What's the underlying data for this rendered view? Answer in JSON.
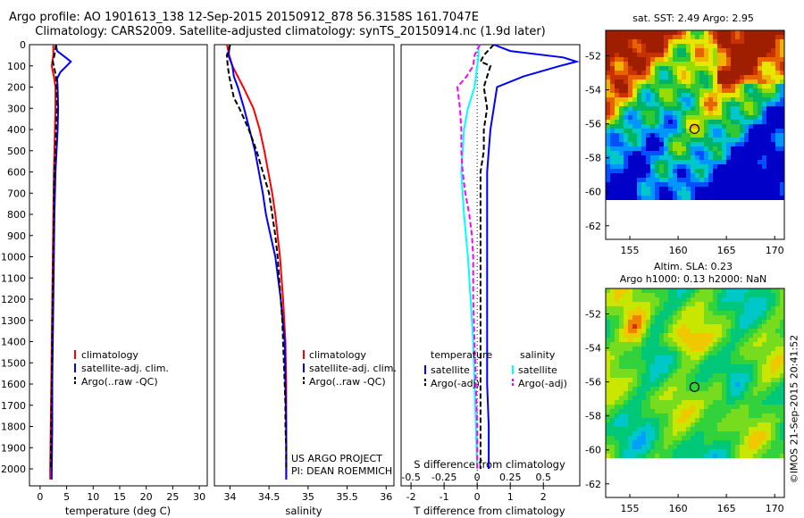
{
  "header": {
    "line1": "Argo profile: AO 1901613_138 12-Sep-2015 20150912_878 56.3158S 161.7047E",
    "line2": "Climatology: CARS2009. Satellite-adjusted climatology: synTS_20150914.nc (1.9d later)"
  },
  "colors": {
    "climatology": "#ff0000",
    "satellite": "#0000ff",
    "argo": "#000000",
    "sat_s": "#00ffff",
    "argo_s": "#ff00ff"
  },
  "chart_data": [
    {
      "type": "line",
      "id": "temperature",
      "xlabel": "temperature (deg C)",
      "ylabel": "",
      "xlim": [
        -2,
        31.5
      ],
      "ylim": [
        2080,
        0
      ],
      "x_ticks": [
        0,
        5,
        10,
        15,
        20,
        25,
        30
      ],
      "y_ticks": [
        0,
        100,
        200,
        300,
        400,
        500,
        600,
        700,
        800,
        900,
        1000,
        1100,
        1200,
        1300,
        1400,
        1500,
        1600,
        1700,
        1800,
        1900,
        2000
      ],
      "legend": [
        "climatology",
        "satellite-adj. clim.",
        "Argo(..raw -QC)"
      ],
      "series": [
        {
          "name": "climatology",
          "depth": [
            0,
            50,
            100,
            150,
            200,
            300,
            400,
            500,
            600,
            800,
            1000,
            1200,
            1400,
            1600,
            1800,
            2000,
            2050
          ],
          "values": [
            2.5,
            2.5,
            2.2,
            2.6,
            2.9,
            2.9,
            2.8,
            2.7,
            2.6,
            2.5,
            2.4,
            2.3,
            2.2,
            2.1,
            2.0,
            1.9,
            1.9
          ]
        },
        {
          "name": "satellite-adj. clim.",
          "depth": [
            0,
            30,
            60,
            80,
            100,
            130,
            160,
            200,
            300,
            400,
            500,
            600,
            800,
            1000,
            1200,
            1400,
            1600,
            1800,
            2000,
            2050
          ],
          "values": [
            3.0,
            3.2,
            4.8,
            5.8,
            5.0,
            3.8,
            3.2,
            3.3,
            3.4,
            3.3,
            3.1,
            2.9,
            2.7,
            2.6,
            2.5,
            2.4,
            2.3,
            2.3,
            2.2,
            2.2
          ]
        },
        {
          "name": "Argo(..raw -QC)",
          "depth": [
            0,
            50,
            80,
            100,
            150,
            200,
            300,
            400,
            500,
            600,
            800,
            1000,
            1200,
            1400,
            1600,
            1800,
            2000
          ],
          "values": [
            3.0,
            2.7,
            2.4,
            2.6,
            3.0,
            3.1,
            3.2,
            3.0,
            2.9,
            2.7,
            2.6,
            2.5,
            2.4,
            2.3,
            2.2,
            2.1,
            2.0
          ]
        }
      ]
    },
    {
      "type": "line",
      "id": "salinity",
      "xlabel": "salinity",
      "xlim": [
        33.8,
        36.1
      ],
      "ylim": [
        2080,
        0
      ],
      "x_ticks": [
        34,
        34.5,
        35,
        35.5,
        36
      ],
      "legend": [
        "climatology",
        "satellite-adj. clim.",
        "Argo(..raw -QC)"
      ],
      "project_line1": "US ARGO PROJECT",
      "project_line2": "PI: DEAN ROEMMICH",
      "series": [
        {
          "name": "climatology",
          "depth": [
            0,
            50,
            100,
            200,
            300,
            400,
            500,
            600,
            700,
            800,
            900,
            1000,
            1200,
            1400,
            1600,
            1800,
            2000,
            2050
          ],
          "values": [
            33.96,
            33.99,
            34.03,
            34.17,
            34.3,
            34.38,
            34.44,
            34.49,
            34.54,
            34.58,
            34.61,
            34.64,
            34.68,
            34.71,
            34.72,
            34.72,
            34.72,
            34.72
          ]
        },
        {
          "name": "satellite-adj. clim.",
          "depth": [
            0,
            50,
            100,
            150,
            200,
            300,
            400,
            500,
            600,
            700,
            800,
            900,
            1000,
            1200,
            1400,
            1600,
            1800,
            2000,
            2050
          ],
          "values": [
            34.0,
            33.98,
            34.03,
            34.05,
            34.1,
            34.18,
            34.25,
            34.32,
            34.37,
            34.42,
            34.46,
            34.52,
            34.58,
            34.65,
            34.7,
            34.71,
            34.72,
            34.72,
            34.72
          ]
        },
        {
          "name": "Argo(..raw -QC)",
          "depth": [
            0,
            50,
            100,
            150,
            200,
            250,
            300,
            400,
            500,
            600,
            700,
            800,
            900,
            1000,
            1100,
            1200,
            1300,
            1400,
            1500,
            1600,
            1700,
            1800,
            1900,
            2000
          ],
          "values": [
            34.0,
            33.96,
            33.97,
            33.99,
            34.02,
            34.05,
            34.12,
            34.24,
            34.34,
            34.42,
            34.5,
            34.54,
            34.58,
            34.61,
            34.63,
            34.65,
            34.67,
            34.68,
            34.69,
            34.7,
            34.71,
            34.71,
            34.72,
            34.72
          ]
        }
      ]
    },
    {
      "type": "line",
      "id": "difference",
      "xlabel": "T difference from climatology",
      "xlabel_top": "S difference from climatology",
      "xlim": [
        -2.3,
        3.1
      ],
      "ylim": [
        2080,
        0
      ],
      "x_ticks": [
        -2,
        -1,
        0,
        1,
        2
      ],
      "s_ticks": [
        -0.5,
        -0.25,
        0,
        0.25,
        0.5
      ],
      "s_scale": 0.25,
      "legend_titles": [
        "temperature",
        "salinity"
      ],
      "legend": [
        "satellite",
        "Argo(-adj)",
        "satellite",
        "Argo(-adj)"
      ],
      "series": [
        {
          "name": "temperature satellite",
          "depth": [
            0,
            30,
            60,
            80,
            100,
            150,
            200,
            300,
            400,
            500,
            600,
            800,
            1000,
            1200,
            1400,
            1600,
            1800,
            2000
          ],
          "values": [
            0.5,
            1.0,
            2.6,
            3.0,
            2.5,
            1.4,
            0.6,
            0.5,
            0.4,
            0.35,
            0.3,
            0.3,
            0.3,
            0.3,
            0.3,
            0.3,
            0.35,
            0.35
          ]
        },
        {
          "name": "temperature Argo(-adj)",
          "depth": [
            0,
            50,
            80,
            100,
            150,
            200,
            300,
            400,
            500,
            600,
            800,
            1000,
            1200,
            1400,
            1600,
            1800,
            2000
          ],
          "values": [
            0.5,
            0.2,
            0.1,
            0.4,
            0.3,
            0.2,
            0.3,
            0.2,
            0.2,
            0.1,
            0.1,
            0.1,
            0.1,
            0.1,
            0.1,
            0.1,
            0.1
          ]
        },
        {
          "name": "salinity satellite",
          "depth": [
            0,
            50,
            100,
            200,
            300,
            400,
            500,
            600,
            800,
            1000,
            1200,
            1400,
            1600,
            1800,
            2000
          ],
          "values": [
            0.01,
            0.01,
            0.0,
            -0.02,
            -0.07,
            -0.1,
            -0.11,
            -0.12,
            -0.1,
            -0.07,
            -0.05,
            -0.03,
            -0.02,
            -0.01,
            0.0
          ]
        },
        {
          "name": "salinity Argo(-adj)",
          "depth": [
            0,
            50,
            100,
            150,
            200,
            300,
            400,
            500,
            600,
            700,
            800,
            900,
            1000,
            1200,
            1400,
            1600,
            1800,
            2000
          ],
          "values": [
            0.02,
            -0.02,
            -0.03,
            -0.08,
            -0.15,
            -0.13,
            -0.12,
            -0.12,
            -0.11,
            -0.09,
            -0.06,
            -0.04,
            -0.03,
            -0.03,
            -0.02,
            -0.01,
            0.0,
            0.0
          ]
        }
      ]
    },
    {
      "type": "heatmap",
      "id": "sst-map",
      "title": "sat. SST: 2.49 Argo: 2.95",
      "xlim": [
        152.5,
        171
      ],
      "ylim": [
        -62.8,
        -50.5
      ],
      "x_ticks": [
        155,
        160,
        165,
        170
      ],
      "y_ticks": [
        -52,
        -54,
        -56,
        -58,
        -60,
        -62
      ],
      "argo_position": [
        161.7,
        -56.3
      ]
    },
    {
      "type": "heatmap",
      "id": "sla-map",
      "title": "Altim. SLA: 0.23",
      "subtitle": "Argo h1000: 0.13 h2000: NaN",
      "xlim": [
        152.5,
        171
      ],
      "ylim": [
        -62.8,
        -50.5
      ],
      "x_ticks": [
        155,
        160,
        165,
        170
      ],
      "y_ticks": [
        -52,
        -54,
        -56,
        -58,
        -60,
        -62
      ],
      "argo_position": [
        161.7,
        -56.3
      ]
    }
  ],
  "credit": "©IMOS 21-Sep-2015 20:41:52"
}
